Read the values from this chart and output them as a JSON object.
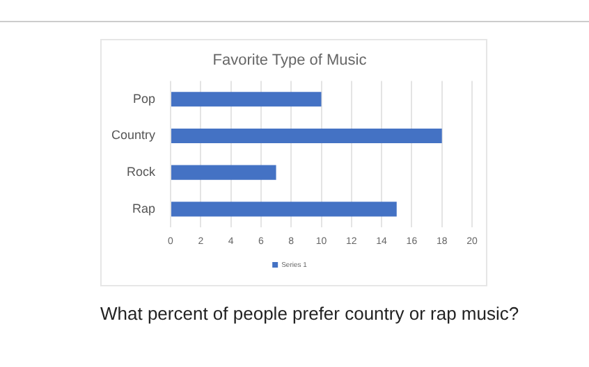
{
  "chart_data": {
    "type": "bar",
    "orientation": "horizontal",
    "title": "Favorite Type of Music",
    "categories": [
      "Pop",
      "Country",
      "Rock",
      "Rap"
    ],
    "series": [
      {
        "name": "Series 1",
        "color": "#4472c4",
        "values": [
          10,
          18,
          7,
          15
        ]
      }
    ],
    "xlim": [
      0,
      20
    ],
    "xticks": [
      0,
      2,
      4,
      6,
      8,
      10,
      12,
      14,
      16,
      18,
      20
    ],
    "grid": "x",
    "legend": "bottom",
    "annotations": [
      "What percent of people prefer country or rap music?"
    ]
  }
}
